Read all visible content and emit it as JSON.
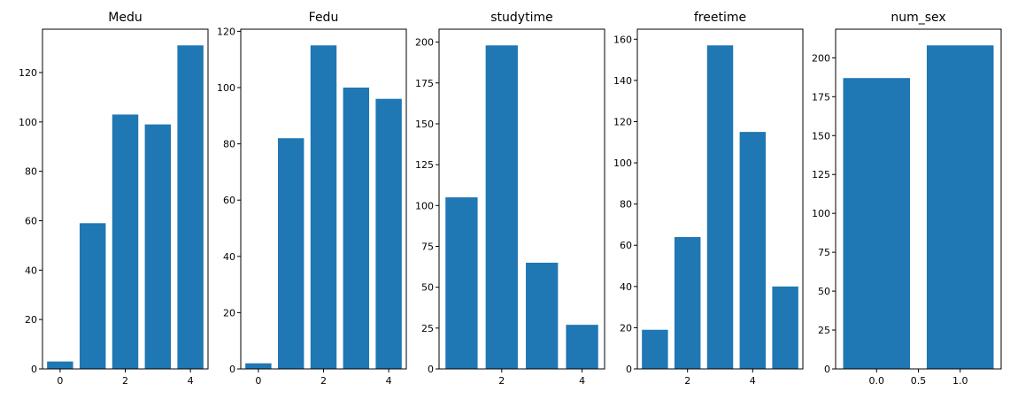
{
  "chart_data": [
    {
      "type": "bar",
      "title": "Medu",
      "x": [
        0,
        1,
        2,
        3,
        4
      ],
      "values": [
        3,
        59,
        103,
        99,
        131
      ],
      "bar_width": 0.8,
      "xlim": [
        -0.54,
        4.54
      ],
      "ylim": [
        0,
        137.55
      ],
      "xticks": [
        0,
        2,
        4
      ],
      "xtick_labels": [
        "0",
        "2",
        "4"
      ],
      "yticks": [
        0,
        20,
        40,
        60,
        80,
        100,
        120
      ],
      "ytick_labels": [
        "0",
        "20",
        "40",
        "60",
        "80",
        "100",
        "120"
      ],
      "color": "#1f77b4",
      "grid": false
    },
    {
      "type": "bar",
      "title": "Fedu",
      "x": [
        0,
        1,
        2,
        3,
        4
      ],
      "values": [
        2,
        82,
        115,
        100,
        96
      ],
      "bar_width": 0.8,
      "xlim": [
        -0.54,
        4.54
      ],
      "ylim": [
        0,
        120.75
      ],
      "xticks": [
        0,
        2,
        4
      ],
      "xtick_labels": [
        "0",
        "2",
        "4"
      ],
      "yticks": [
        0,
        20,
        40,
        60,
        80,
        100,
        120
      ],
      "ytick_labels": [
        "0",
        "20",
        "40",
        "60",
        "80",
        "100",
        "120"
      ],
      "color": "#1f77b4",
      "grid": false
    },
    {
      "type": "bar",
      "title": "studytime",
      "x": [
        1,
        2,
        3,
        4
      ],
      "values": [
        105,
        198,
        65,
        27
      ],
      "bar_width": 0.8,
      "xlim": [
        0.44,
        4.56
      ],
      "ylim": [
        0,
        207.9
      ],
      "xticks": [
        2,
        4
      ],
      "xtick_labels": [
        "2",
        "4"
      ],
      "yticks": [
        0,
        25,
        50,
        75,
        100,
        125,
        150,
        175,
        200
      ],
      "ytick_labels": [
        "0",
        "25",
        "50",
        "75",
        "100",
        "125",
        "150",
        "175",
        "200"
      ],
      "color": "#1f77b4",
      "grid": false
    },
    {
      "type": "bar",
      "title": "freetime",
      "x": [
        1,
        2,
        3,
        4,
        5
      ],
      "values": [
        19,
        64,
        157,
        115,
        40
      ],
      "bar_width": 0.8,
      "xlim": [
        0.46,
        5.54
      ],
      "ylim": [
        0,
        164.85
      ],
      "xticks": [
        2,
        4
      ],
      "xtick_labels": [
        "2",
        "4"
      ],
      "yticks": [
        0,
        20,
        40,
        60,
        80,
        100,
        120,
        140,
        160
      ],
      "ytick_labels": [
        "0",
        "20",
        "40",
        "60",
        "80",
        "100",
        "120",
        "140",
        "160"
      ],
      "color": "#1f77b4",
      "grid": false
    },
    {
      "type": "bar",
      "title": "num_sex",
      "x": [
        0,
        1
      ],
      "values": [
        187,
        208
      ],
      "bar_width": 0.8,
      "xlim": [
        -0.49,
        1.49
      ],
      "ylim": [
        0,
        218.4
      ],
      "xticks": [
        0,
        0.5,
        1
      ],
      "xtick_labels": [
        "0.0",
        "0.5",
        "1.0"
      ],
      "yticks": [
        0,
        25,
        50,
        75,
        100,
        125,
        150,
        175,
        200
      ],
      "ytick_labels": [
        "0",
        "25",
        "50",
        "75",
        "100",
        "125",
        "150",
        "175",
        "200"
      ],
      "color": "#1f77b4",
      "grid": false
    }
  ]
}
